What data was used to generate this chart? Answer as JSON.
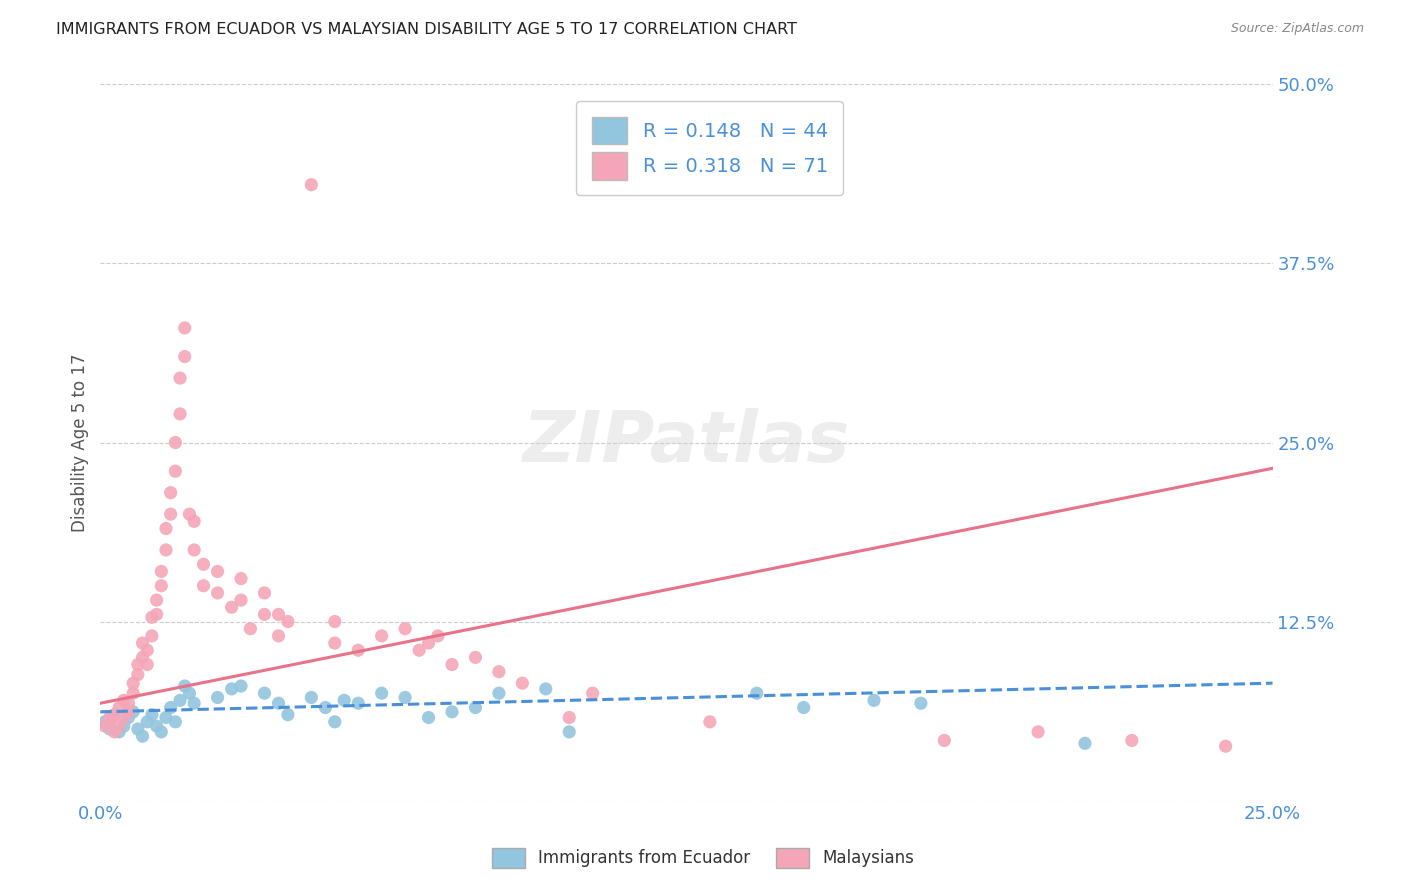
{
  "title": "IMMIGRANTS FROM ECUADOR VS MALAYSIAN DISABILITY AGE 5 TO 17 CORRELATION CHART",
  "source": "Source: ZipAtlas.com",
  "ylabel": "Disability Age 5 to 17",
  "xlabel": "",
  "xlim": [
    0.0,
    0.25
  ],
  "ylim": [
    0.0,
    0.5
  ],
  "xticks": [
    0.0,
    0.05,
    0.1,
    0.15,
    0.2,
    0.25
  ],
  "xticklabels": [
    "0.0%",
    "",
    "",
    "",
    "",
    "25.0%"
  ],
  "yticks": [
    0.0,
    0.125,
    0.25,
    0.375,
    0.5
  ],
  "yticklabels": [
    "",
    "12.5%",
    "25.0%",
    "37.5%",
    "50.0%"
  ],
  "r_ecuador": 0.148,
  "n_ecuador": 44,
  "r_malaysian": 0.318,
  "n_malaysian": 71,
  "blue_color": "#92C5DE",
  "pink_color": "#F4A6B8",
  "blue_line_color": "#4A90D9",
  "pink_line_color": "#E8728A",
  "title_color": "#222222",
  "axis_label_color": "#555555",
  "tick_color": "#4A90D9",
  "grid_color": "#CCCCCC",
  "background_color": "#FFFFFF",
  "ecuador_points": [
    [
      0.001,
      0.055
    ],
    [
      0.002,
      0.05
    ],
    [
      0.003,
      0.06
    ],
    [
      0.004,
      0.048
    ],
    [
      0.005,
      0.052
    ],
    [
      0.006,
      0.058
    ],
    [
      0.007,
      0.062
    ],
    [
      0.008,
      0.05
    ],
    [
      0.009,
      0.045
    ],
    [
      0.01,
      0.055
    ],
    [
      0.011,
      0.06
    ],
    [
      0.012,
      0.052
    ],
    [
      0.013,
      0.048
    ],
    [
      0.014,
      0.058
    ],
    [
      0.015,
      0.065
    ],
    [
      0.016,
      0.055
    ],
    [
      0.017,
      0.07
    ],
    [
      0.018,
      0.08
    ],
    [
      0.019,
      0.075
    ],
    [
      0.02,
      0.068
    ],
    [
      0.025,
      0.072
    ],
    [
      0.028,
      0.078
    ],
    [
      0.03,
      0.08
    ],
    [
      0.035,
      0.075
    ],
    [
      0.038,
      0.068
    ],
    [
      0.04,
      0.06
    ],
    [
      0.045,
      0.072
    ],
    [
      0.048,
      0.065
    ],
    [
      0.05,
      0.055
    ],
    [
      0.052,
      0.07
    ],
    [
      0.055,
      0.068
    ],
    [
      0.06,
      0.075
    ],
    [
      0.065,
      0.072
    ],
    [
      0.07,
      0.058
    ],
    [
      0.075,
      0.062
    ],
    [
      0.08,
      0.065
    ],
    [
      0.085,
      0.075
    ],
    [
      0.095,
      0.078
    ],
    [
      0.1,
      0.048
    ],
    [
      0.14,
      0.075
    ],
    [
      0.15,
      0.065
    ],
    [
      0.165,
      0.07
    ],
    [
      0.175,
      0.068
    ],
    [
      0.21,
      0.04
    ]
  ],
  "malaysian_points": [
    [
      0.001,
      0.052
    ],
    [
      0.002,
      0.055
    ],
    [
      0.002,
      0.058
    ],
    [
      0.003,
      0.048
    ],
    [
      0.003,
      0.06
    ],
    [
      0.004,
      0.052
    ],
    [
      0.004,
      0.065
    ],
    [
      0.005,
      0.058
    ],
    [
      0.005,
      0.07
    ],
    [
      0.006,
      0.062
    ],
    [
      0.006,
      0.068
    ],
    [
      0.007,
      0.075
    ],
    [
      0.007,
      0.082
    ],
    [
      0.008,
      0.088
    ],
    [
      0.008,
      0.095
    ],
    [
      0.009,
      0.1
    ],
    [
      0.009,
      0.11
    ],
    [
      0.01,
      0.095
    ],
    [
      0.01,
      0.105
    ],
    [
      0.011,
      0.115
    ],
    [
      0.011,
      0.128
    ],
    [
      0.012,
      0.13
    ],
    [
      0.012,
      0.14
    ],
    [
      0.013,
      0.15
    ],
    [
      0.013,
      0.16
    ],
    [
      0.014,
      0.175
    ],
    [
      0.014,
      0.19
    ],
    [
      0.015,
      0.2
    ],
    [
      0.015,
      0.215
    ],
    [
      0.016,
      0.23
    ],
    [
      0.016,
      0.25
    ],
    [
      0.017,
      0.27
    ],
    [
      0.017,
      0.295
    ],
    [
      0.018,
      0.31
    ],
    [
      0.018,
      0.33
    ],
    [
      0.019,
      0.2
    ],
    [
      0.02,
      0.175
    ],
    [
      0.02,
      0.195
    ],
    [
      0.022,
      0.165
    ],
    [
      0.022,
      0.15
    ],
    [
      0.025,
      0.145
    ],
    [
      0.025,
      0.16
    ],
    [
      0.028,
      0.135
    ],
    [
      0.03,
      0.14
    ],
    [
      0.03,
      0.155
    ],
    [
      0.032,
      0.12
    ],
    [
      0.035,
      0.13
    ],
    [
      0.035,
      0.145
    ],
    [
      0.038,
      0.115
    ],
    [
      0.038,
      0.13
    ],
    [
      0.04,
      0.125
    ],
    [
      0.045,
      0.43
    ],
    [
      0.05,
      0.11
    ],
    [
      0.05,
      0.125
    ],
    [
      0.055,
      0.105
    ],
    [
      0.06,
      0.115
    ],
    [
      0.065,
      0.12
    ],
    [
      0.068,
      0.105
    ],
    [
      0.07,
      0.11
    ],
    [
      0.072,
      0.115
    ],
    [
      0.075,
      0.095
    ],
    [
      0.08,
      0.1
    ],
    [
      0.085,
      0.09
    ],
    [
      0.09,
      0.082
    ],
    [
      0.1,
      0.058
    ],
    [
      0.105,
      0.075
    ],
    [
      0.13,
      0.055
    ],
    [
      0.18,
      0.042
    ],
    [
      0.2,
      0.048
    ],
    [
      0.22,
      0.042
    ],
    [
      0.24,
      0.038
    ]
  ],
  "ecuador_line": [
    [
      0.0,
      0.062
    ],
    [
      0.25,
      0.082
    ]
  ],
  "malaysian_line": [
    [
      0.0,
      0.068
    ],
    [
      0.25,
      0.232
    ]
  ]
}
